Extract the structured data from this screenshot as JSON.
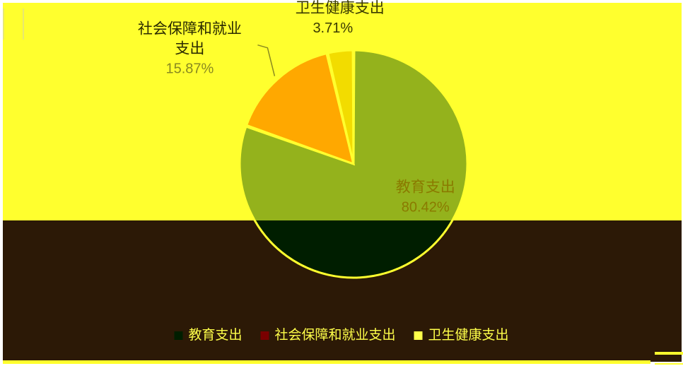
{
  "chart_data": {
    "type": "pie",
    "slices": [
      {
        "name": "教育支出",
        "value": 80.42,
        "value_label": "80.42%",
        "color": "#94b21c",
        "label_color": "#8a7a00"
      },
      {
        "name": "社会保障和就业支出",
        "name_lines": [
          "社会保障和就业",
          "支出"
        ],
        "value": 15.87,
        "value_label": "15.87%",
        "color": "#ffa800",
        "label_color": "#8a8a20"
      },
      {
        "name": "卫生健康支出",
        "value": 3.71,
        "value_label": "3.71%",
        "color": "#f2dc00",
        "label_color": "#3a3a00"
      }
    ],
    "legend": {
      "position": "bottom",
      "items": [
        "教育支出",
        "社会保障和就业支出",
        "卫生健康支出"
      ]
    },
    "colors": {
      "slice_border": "#ffff2e",
      "lower_pie": "#001e00",
      "legend_text": "#ffff4a",
      "legend_markers": [
        "#001e00",
        "#7a0000",
        "#ffff4a"
      ]
    }
  }
}
